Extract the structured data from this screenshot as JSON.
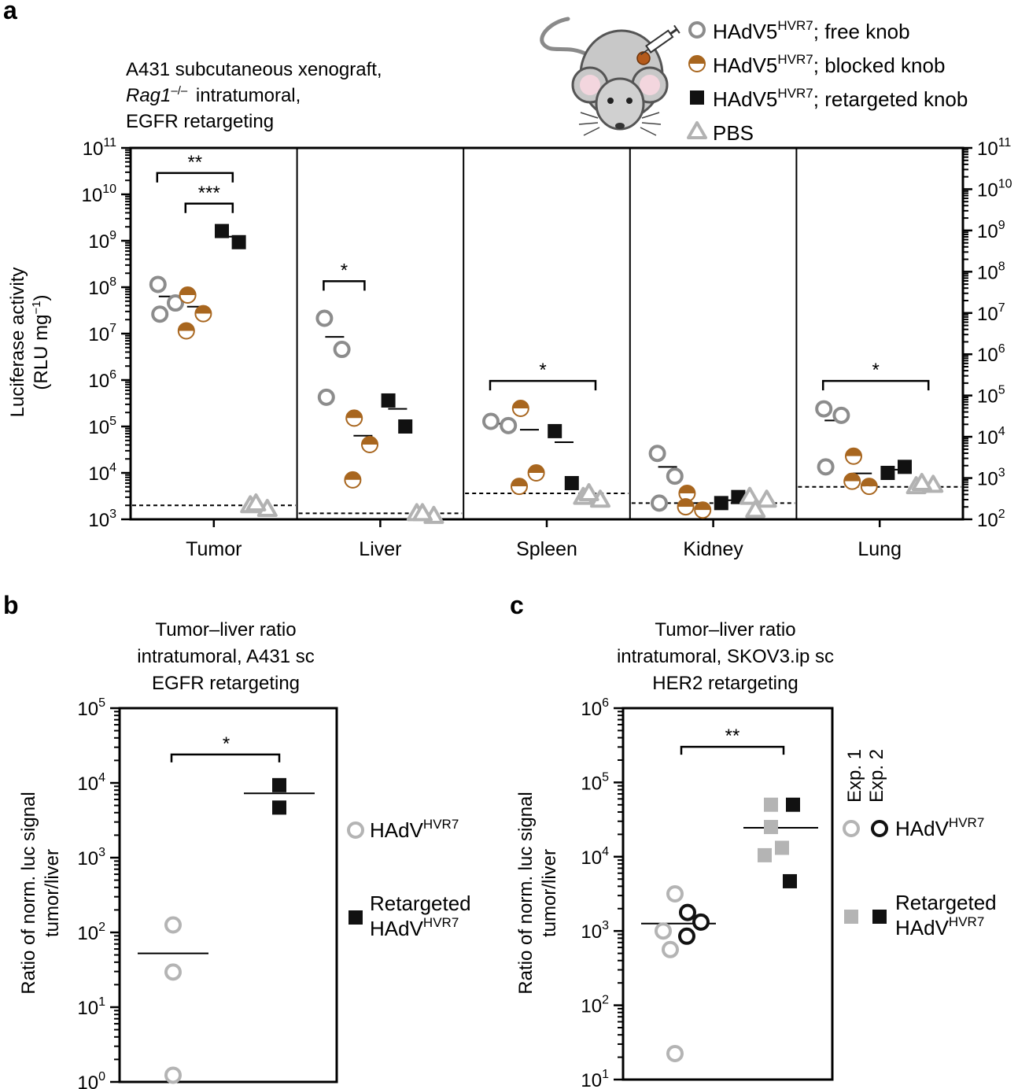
{
  "colors": {
    "free": "#8c8c8c",
    "blocked": "#a8661f",
    "retargeted": "#111111",
    "pbs": "#b2b2b2",
    "light": "#b4b4b4",
    "dark": "#111111"
  },
  "panels": {
    "a": "a",
    "b": "b",
    "c": "c"
  },
  "chart_data": [
    {
      "id": "a",
      "type": "scatter",
      "title_lines": [
        "A431 subcutaneous xenograft,",
        "intratumoral,",
        "EGFR retargeting"
      ],
      "title_italic": "Rag1",
      "title_italic_sup": "–/–",
      "ylabel": "Luciferase activity",
      "ylabel2": "(RLU mg",
      "ylabel2_sup": "−1",
      "ylabel2_end": ")",
      "yscale": "log",
      "ylim_exp": [
        3,
        11
      ],
      "left_ticks": [
        {
          "b": "10",
          "e": "11"
        },
        {
          "b": "10",
          "e": "10"
        },
        {
          "b": "10",
          "e": "9"
        },
        {
          "b": "10",
          "e": "8"
        },
        {
          "b": "10",
          "e": "7"
        },
        {
          "b": "10",
          "e": "6"
        },
        {
          "b": "10",
          "e": "5"
        },
        {
          "b": "10",
          "e": "4"
        },
        {
          "b": "10",
          "e": "3"
        }
      ],
      "right_ticks": [
        {
          "b": "10",
          "e": "11"
        },
        {
          "b": "10",
          "e": "10"
        },
        {
          "b": "10",
          "e": "9"
        },
        {
          "b": "10",
          "e": "8"
        },
        {
          "b": "10",
          "e": "7"
        },
        {
          "b": "10",
          "e": "6"
        },
        {
          "b": "10",
          "e": "5"
        },
        {
          "b": "10",
          "e": "4"
        },
        {
          "b": "10",
          "e": "3"
        },
        {
          "b": "10",
          "e": "2"
        }
      ],
      "legend": [
        {
          "key": "free",
          "pre": "HAdV5",
          "sup": "HVR7",
          "post": "; free knob"
        },
        {
          "key": "blocked",
          "pre": "HAdV5",
          "sup": "HVR7",
          "post": "; blocked knob"
        },
        {
          "key": "retargeted",
          "pre": "HAdV5",
          "sup": "HVR7",
          "post": "; retargeted knob"
        },
        {
          "key": "pbs",
          "pre": "PBS",
          "sup": "",
          "post": ""
        }
      ],
      "organs": [
        {
          "name": "Tumor",
          "detection_limit": 3.3,
          "groups": [
            {
              "key": "free",
              "points": [
                8.06,
                7.66,
                7.42
              ],
              "median": 7.8
            },
            {
              "key": "blocked",
              "points": [
                7.83,
                7.43,
                7.06
              ],
              "median": 7.58
            },
            {
              "key": "retargeted",
              "points": [
                9.21,
                8.97
              ],
              "median": 9.09
            },
            {
              "key": "pbs",
              "points": [
                3.3,
                3.22,
                3.34
              ],
              "median": 3.26
            }
          ],
          "brackets": [
            {
              "from": "free",
              "to": "retargeted",
              "level": 10.46,
              "label": "**"
            },
            {
              "from": "blocked",
              "to": "retargeted",
              "level": 9.8,
              "label": "***"
            }
          ]
        },
        {
          "name": "Liver",
          "detection_limit": 3.13,
          "groups": [
            {
              "key": "free",
              "points": [
                7.33,
                6.66,
                5.63
              ],
              "median": 6.93
            },
            {
              "key": "blocked",
              "points": [
                5.18,
                4.61,
                3.85
              ],
              "median": 4.8
            },
            {
              "key": "retargeted",
              "points": [
                5.56,
                5.0
              ],
              "median": 5.38
            },
            {
              "key": "pbs",
              "points": [
                3.13,
                3.07,
                3.13
              ],
              "median": 3.09
            }
          ],
          "brackets": [
            {
              "from": "free",
              "to": "blocked",
              "level": 8.13,
              "label": "*"
            }
          ]
        },
        {
          "name": "Spleen",
          "detection_limit": 3.56,
          "groups": [
            {
              "key": "free",
              "points": [
                5.11,
                5.02
              ],
              "median": 5.06
            },
            {
              "key": "blocked",
              "points": [
                5.39,
                4.0,
                3.71
              ],
              "median": 4.93
            },
            {
              "key": "retargeted",
              "points": [
                4.9,
                3.78
              ],
              "median": 4.66
            },
            {
              "key": "pbs",
              "points": [
                3.48,
                3.42,
                3.56
              ],
              "median": 3.48
            }
          ],
          "brackets": [
            {
              "from": "free",
              "to": "pbs",
              "level": 5.98,
              "label": "*"
            }
          ]
        },
        {
          "name": "Kidney",
          "detection_limit": 3.35,
          "groups": [
            {
              "key": "free",
              "points": [
                4.42,
                3.93,
                3.35
              ],
              "median": 4.13
            },
            {
              "key": "blocked",
              "points": [
                3.56,
                3.2,
                3.27
              ],
              "median": 3.35
            },
            {
              "key": "retargeted",
              "points": [
                3.35,
                3.48
              ],
              "median": 3.41
            },
            {
              "key": "pbs",
              "points": [
                3.48,
                3.42,
                3.2
              ],
              "median": 3.38
            }
          ],
          "brackets": []
        },
        {
          "name": "Lung",
          "detection_limit": 3.7,
          "groups": [
            {
              "key": "free",
              "points": [
                5.38,
                5.24,
                4.13
              ],
              "median": 5.13
            },
            {
              "key": "blocked",
              "points": [
                4.36,
                3.71,
                3.82
              ],
              "median": 3.99
            },
            {
              "key": "retargeted",
              "points": [
                4.0,
                4.13
              ],
              "median": 4.07
            },
            {
              "key": "pbs",
              "points": [
                3.71,
                3.74,
                3.78
              ],
              "median": 3.74
            }
          ],
          "brackets": [
            {
              "from": "free",
              "to": "pbs",
              "level": 5.98,
              "label": "*"
            }
          ]
        }
      ]
    },
    {
      "id": "b",
      "type": "scatter",
      "title_lines": [
        "Tumor–liver ratio",
        "intratumoral, A431 sc",
        "EGFR retargeting"
      ],
      "ylabel_lines": [
        "Ratio of norm. luc signal",
        "tumor/liver"
      ],
      "yscale": "log",
      "ylim_exp": [
        0,
        5
      ],
      "ticks": [
        {
          "b": "10",
          "e": "5"
        },
        {
          "b": "10",
          "e": "4"
        },
        {
          "b": "10",
          "e": "3"
        },
        {
          "b": "10",
          "e": "2"
        },
        {
          "b": "10",
          "e": "1"
        },
        {
          "b": "10",
          "e": "0"
        }
      ],
      "groups": [
        {
          "name": "HAdV HVR7",
          "style": "light-circle",
          "points": [
            2.1,
            1.47,
            0.09
          ],
          "median": 1.72
        },
        {
          "name": "Retargeted HAdV HVR7",
          "style": "dark-square",
          "points": [
            3.97,
            3.67
          ],
          "median": 3.86
        }
      ],
      "bracket": {
        "level": 4.38,
        "label": "*"
      },
      "legend": [
        {
          "key": "light-circle",
          "line1": "",
          "pre": "HAdV",
          "sup": "HVR7"
        },
        {
          "key": "dark-square",
          "line1": "Retargeted",
          "pre": "HAdV",
          "sup": "HVR7"
        }
      ]
    },
    {
      "id": "c",
      "type": "scatter",
      "title_lines": [
        "Tumor–liver ratio",
        "intratumoral, SKOV3.ip sc",
        "HER2 retargeting"
      ],
      "ylabel_lines": [
        "Ratio of norm. luc signal",
        "tumor/liver"
      ],
      "yscale": "log",
      "ylim_exp": [
        1,
        6
      ],
      "ticks": [
        {
          "b": "10",
          "e": "6"
        },
        {
          "b": "10",
          "e": "5"
        },
        {
          "b": "10",
          "e": "4"
        },
        {
          "b": "10",
          "e": "3"
        },
        {
          "b": "10",
          "e": "2"
        },
        {
          "b": "10",
          "e": "1"
        }
      ],
      "groups": [
        {
          "name": "HAdV HVR7 Exp. 1",
          "style": "light-circle",
          "points": [
            3.5,
            3.0,
            2.75,
            1.35
          ],
          "median": 3.1
        },
        {
          "name": "HAdV HVR7 Exp. 2",
          "style": "dark-circle",
          "points": [
            3.25,
            3.12,
            2.93
          ],
          "median": null
        },
        {
          "name": "Retargeted Exp. 1",
          "style": "light-square",
          "points": [
            4.7,
            4.4,
            4.02,
            4.12
          ],
          "median": 4.39
        },
        {
          "name": "Retargeted Exp. 2",
          "style": "dark-square",
          "points": [
            4.7,
            3.67
          ],
          "median": null
        }
      ],
      "bracket": {
        "level": 5.48,
        "label": "**"
      },
      "exp_labels": [
        "Exp. 1",
        "Exp. 2"
      ],
      "legend": [
        {
          "key": "circle",
          "line1": "",
          "pre": "HAdV",
          "sup": "HVR7"
        },
        {
          "key": "square",
          "line1": "Retargeted",
          "pre": "HAdV",
          "sup": "HVR7"
        }
      ]
    }
  ]
}
